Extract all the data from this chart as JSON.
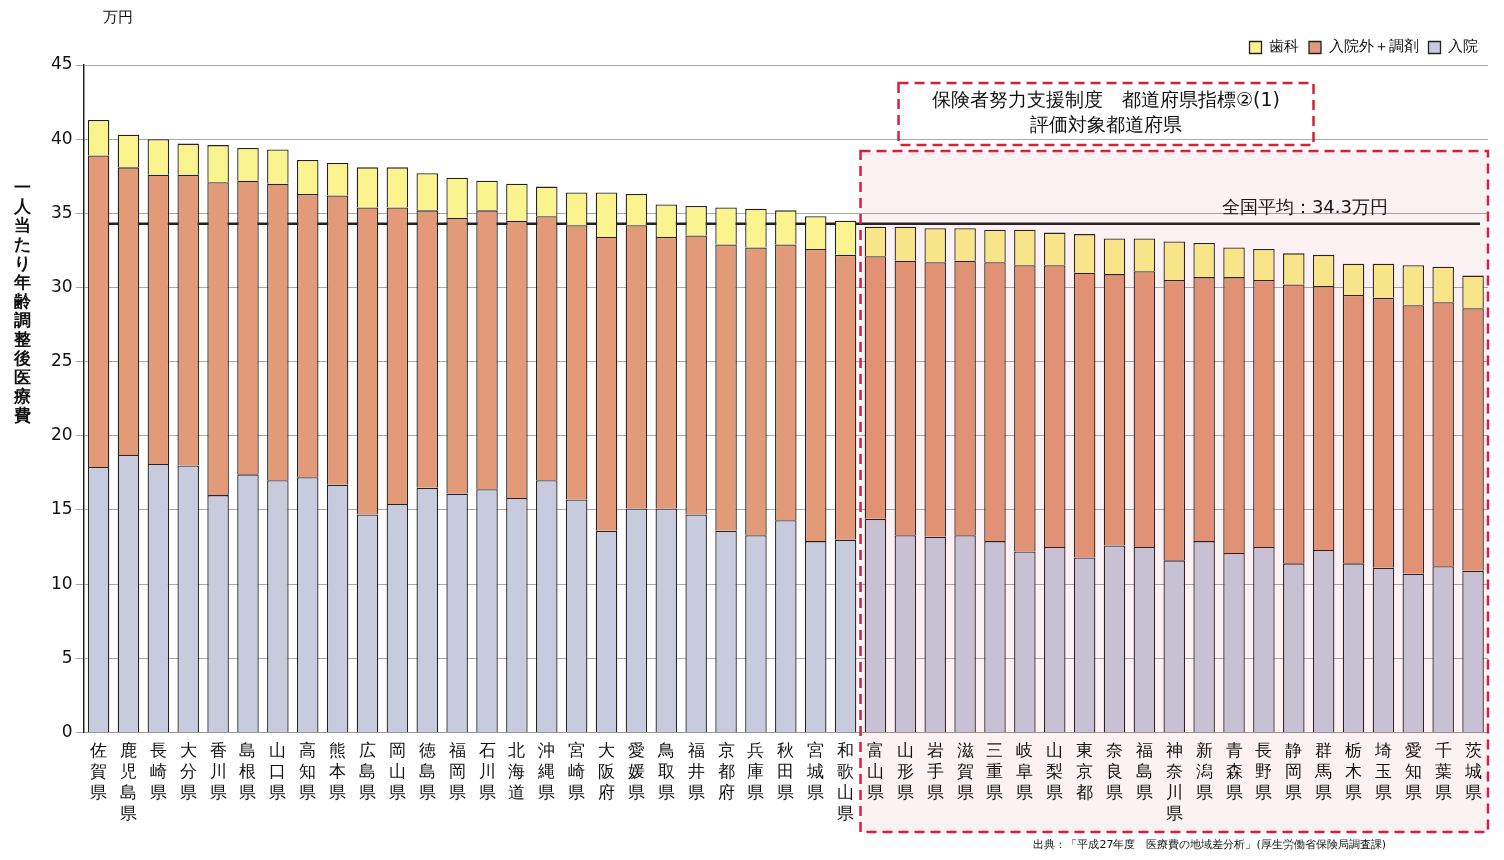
{
  "chart_data": {
    "type": "bar",
    "stacked": true,
    "ylabel": "一人当たり年齢調整後医療費",
    "categories": [
      "佐賀県",
      "鹿児島県",
      "長崎県",
      "大分県",
      "香川県",
      "島根県",
      "山口県",
      "高知県",
      "熊本県",
      "広島県",
      "岡山県",
      "徳島県",
      "福岡県",
      "石川県",
      "北海道",
      "沖縄県",
      "宮崎県",
      "大阪府",
      "愛媛県",
      "鳥取県",
      "福井県",
      "京都府",
      "兵庫県",
      "秋田県",
      "宮城県",
      "和歌山県",
      "富山県",
      "山形県",
      "岩手県",
      "滋賀県",
      "三重県",
      "岐阜県",
      "山梨県",
      "東京都",
      "奈良県",
      "福島県",
      "神奈川県",
      "新潟県",
      "青森県",
      "長野県",
      "静岡県",
      "群馬県",
      "栃木県",
      "埼玉県",
      "愛知県",
      "千葉県",
      "茨城県"
    ],
    "series": [
      {
        "name": "入院",
        "color": "#c8cbdd",
        "values": [
          17.9,
          18.7,
          18.1,
          18.0,
          16.0,
          17.4,
          17.0,
          17.2,
          16.7,
          14.7,
          15.4,
          16.5,
          16.1,
          16.4,
          15.8,
          17.0,
          15.7,
          13.6,
          15.1,
          15.1,
          14.7,
          13.6,
          13.3,
          14.3,
          12.9,
          13.0,
          14.4,
          13.3,
          13.2,
          13.3,
          12.9,
          12.2,
          12.5,
          11.8,
          12.6,
          12.5,
          11.6,
          12.9,
          12.1,
          12.5,
          11.4,
          12.3,
          11.4,
          11.1,
          10.7,
          11.2,
          10.9
        ]
      },
      {
        "name": "入院外＋調剤",
        "color": "#e39a78",
        "values": [
          21.0,
          19.4,
          19.5,
          19.6,
          21.1,
          19.8,
          20.0,
          19.1,
          19.5,
          20.7,
          20.0,
          18.7,
          18.6,
          18.8,
          18.7,
          17.8,
          18.5,
          19.8,
          19.1,
          18.3,
          18.8,
          19.3,
          19.4,
          18.6,
          19.7,
          19.2,
          17.7,
          18.5,
          18.5,
          18.5,
          18.8,
          19.3,
          19.0,
          19.2,
          18.3,
          18.6,
          18.9,
          17.8,
          18.6,
          18.0,
          18.8,
          17.8,
          18.1,
          18.2,
          18.1,
          17.8,
          17.7
        ]
      },
      {
        "name": "歯科",
        "color": "#fbf38e",
        "values": [
          2.4,
          2.2,
          2.4,
          2.1,
          2.5,
          2.2,
          2.3,
          2.3,
          2.2,
          2.7,
          2.7,
          2.5,
          2.7,
          2.0,
          2.5,
          2.0,
          2.2,
          3.0,
          2.1,
          2.2,
          2.0,
          2.5,
          2.6,
          2.3,
          2.2,
          2.3,
          2.0,
          2.3,
          2.3,
          2.2,
          2.2,
          2.4,
          2.2,
          2.6,
          2.4,
          2.2,
          2.6,
          2.3,
          2.0,
          2.1,
          2.1,
          2.1,
          2.1,
          2.3,
          2.7,
          2.4,
          2.2
        ]
      }
    ],
    "ylim": [
      0,
      45
    ],
    "yticks": [
      0,
      5,
      10,
      15,
      20,
      25,
      30,
      35,
      40,
      45
    ],
    "grid": "y",
    "legend": "top right",
    "ref_lines": [
      {
        "axis": "y",
        "value": 34.3,
        "label": "全国平均：34.3万円",
        "color": "#222222"
      }
    ],
    "bands": [
      {
        "axis": "x",
        "from": "富山県",
        "to": "茨城県",
        "label": "保険者努力支援制度　都道府県指標②(1)\n評価対象都道府県",
        "color": "#d6203c"
      }
    ],
    "annotations": [
      "万円",
      "出典：「平成27年度　医療費の地域差分析」(厚生労働省保険局調査課)"
    ]
  }
}
